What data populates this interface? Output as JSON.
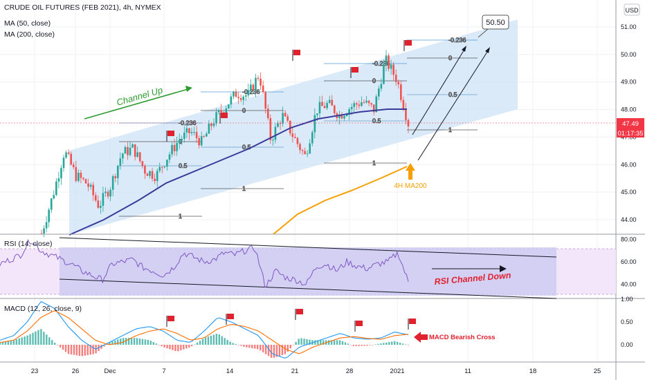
{
  "header": {
    "symbol": "CRUDE OIL FUTURES (FEB 2021), 4h, NYMEX",
    "ma50": "MA (50, close)",
    "ma200": "MA (200, close)",
    "currency": "USD"
  },
  "price_axis": {
    "ticks": [
      "51.00",
      "50.00",
      "49.00",
      "48.00",
      "47.00",
      "46.00",
      "45.00",
      "44.00"
    ],
    "last_price": "47.49",
    "countdown": "01:17:35"
  },
  "rsi_panel": {
    "title": "RSI (14, close)",
    "ticks": [
      "80.00",
      "60.00",
      "40.00"
    ]
  },
  "macd_panel": {
    "title": "MACD (12, 26, close, 9)",
    "ticks": [
      "1.00",
      "0.50",
      "0.00"
    ]
  },
  "x_axis": {
    "ticks": [
      "23",
      "26",
      "Dec",
      "7",
      "14",
      "21",
      "28",
      "2021",
      "11",
      "18",
      "25"
    ]
  },
  "annotations": {
    "channel_up": "Channel Up",
    "ma200_label": "4H MA200",
    "target": "50.50",
    "rsi_channel": "RSI Channel Down",
    "macd_cross": "MACD Bearish Cross"
  },
  "fib_labels": [
    {
      "text": "-0.236"
    },
    {
      "text": "0"
    },
    {
      "text": "0.5"
    },
    {
      "text": "1"
    },
    {
      "text": "-0.236"
    },
    {
      "text": "0"
    },
    {
      "text": "0.5"
    },
    {
      "text": "1"
    },
    {
      "text": "-0.236"
    },
    {
      "text": "0"
    },
    {
      "text": "0.5"
    },
    {
      "text": "1"
    },
    {
      "text": "-0.236"
    },
    {
      "text": "0"
    },
    {
      "text": "0.5"
    },
    {
      "text": "1"
    }
  ],
  "chart_data": {
    "type": "line",
    "instrument": "CRUDE OIL FUTURES (FEB 2021)",
    "price_ylim": [
      43.5,
      51.3
    ],
    "series": [
      {
        "name": "MA (50, close)",
        "x": [
          "23",
          "26",
          "Dec",
          "7",
          "14",
          "21",
          "28",
          "2021"
        ],
        "values": [
          43.4,
          43.7,
          44.6,
          45.3,
          45.9,
          47.6,
          47.9,
          48.0
        ]
      },
      {
        "name": "MA (200, close)",
        "x": [
          "14",
          "21",
          "28",
          "2021"
        ],
        "values": [
          43.6,
          44.7,
          45.4,
          45.9
        ]
      }
    ],
    "price_path": [
      43.5,
      44.9,
      46.5,
      45.6,
      45.3,
      44.5,
      45.2,
      46.4,
      46.6,
      45.8,
      45.6,
      46.3,
      46.9,
      47.2,
      46.8,
      47.6,
      48.1,
      48.6,
      48.5,
      49.3,
      46.9,
      47.8,
      47.0,
      46.3,
      48.0,
      48.2,
      47.8,
      48.1,
      48.3,
      48.0,
      49.8,
      49.1,
      47.5
    ],
    "rsi_ylim": [
      30,
      82
    ],
    "rsi_path": [
      58,
      62,
      66,
      80,
      70,
      66,
      62,
      58,
      52,
      48,
      44,
      58,
      60,
      62,
      55,
      52,
      48,
      55,
      68,
      64,
      60,
      62,
      68,
      66,
      70,
      72,
      38,
      52,
      46,
      44,
      40,
      56,
      58,
      52,
      60,
      56,
      54,
      58,
      60,
      68,
      42
    ],
    "macd_ylim": [
      -0.35,
      1.05
    ],
    "macd_path": [
      0.1,
      0.2,
      0.5,
      0.95,
      0.8,
      0.4,
      0.1,
      -0.1,
      0.05,
      0.2,
      0.35,
      0.4,
      0.3,
      0.1,
      0.05,
      0.3,
      0.6,
      0.5,
      0.35,
      0.2,
      -0.2,
      -0.3,
      -0.05,
      0.05,
      0.15,
      0.25,
      0.15,
      0.12,
      0.15,
      0.28,
      0.22
    ],
    "signal_path": [
      0.05,
      0.1,
      0.3,
      0.6,
      0.75,
      0.6,
      0.35,
      0.1,
      0.0,
      0.05,
      0.2,
      0.3,
      0.35,
      0.25,
      0.1,
      0.15,
      0.35,
      0.45,
      0.4,
      0.3,
      0.1,
      -0.1,
      -0.2,
      -0.05,
      0.05,
      0.15,
      0.18,
      0.14,
      0.12,
      0.2,
      0.23
    ]
  }
}
